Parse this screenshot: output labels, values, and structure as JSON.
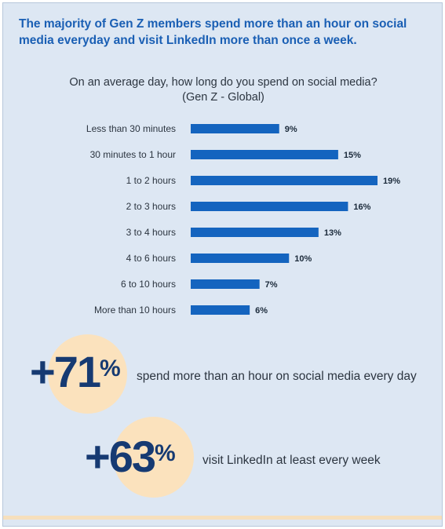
{
  "headline": "The majority of Gen Z members spend more than an hour on social media everyday and visit LinkedIn more than once a week.",
  "chart_data": {
    "type": "bar",
    "orientation": "horizontal",
    "title": "On an average day, how long do you spend on social media?",
    "subtitle": "(Gen Z - Global)",
    "categories": [
      "Less than 30 minutes",
      "30 minutes to 1 hour",
      "1 to 2 hours",
      "2 to 3 hours",
      "3 to 4 hours",
      "4 to 6 hours",
      "6 to 10 hours",
      "More than 10 hours"
    ],
    "values": [
      9,
      15,
      19,
      16,
      13,
      10,
      7,
      6
    ],
    "value_labels": [
      "9%",
      "15%",
      "19%",
      "16%",
      "13%",
      "10%",
      "7%",
      "6%"
    ],
    "unit": "%",
    "xlim": [
      0,
      19
    ],
    "bar_color": "#1464bf"
  },
  "stats": [
    {
      "number": "+71",
      "suffix": "%",
      "text": "spend more than an hour on social media every day"
    },
    {
      "number": "+63",
      "suffix": "%",
      "text": "visit LinkedIn at least every week"
    }
  ],
  "colors": {
    "background": "#dde7f3",
    "headline": "#1a5fb4",
    "big_number": "#163a72",
    "circle": "#fbe2bd",
    "bar": "#1464bf"
  }
}
